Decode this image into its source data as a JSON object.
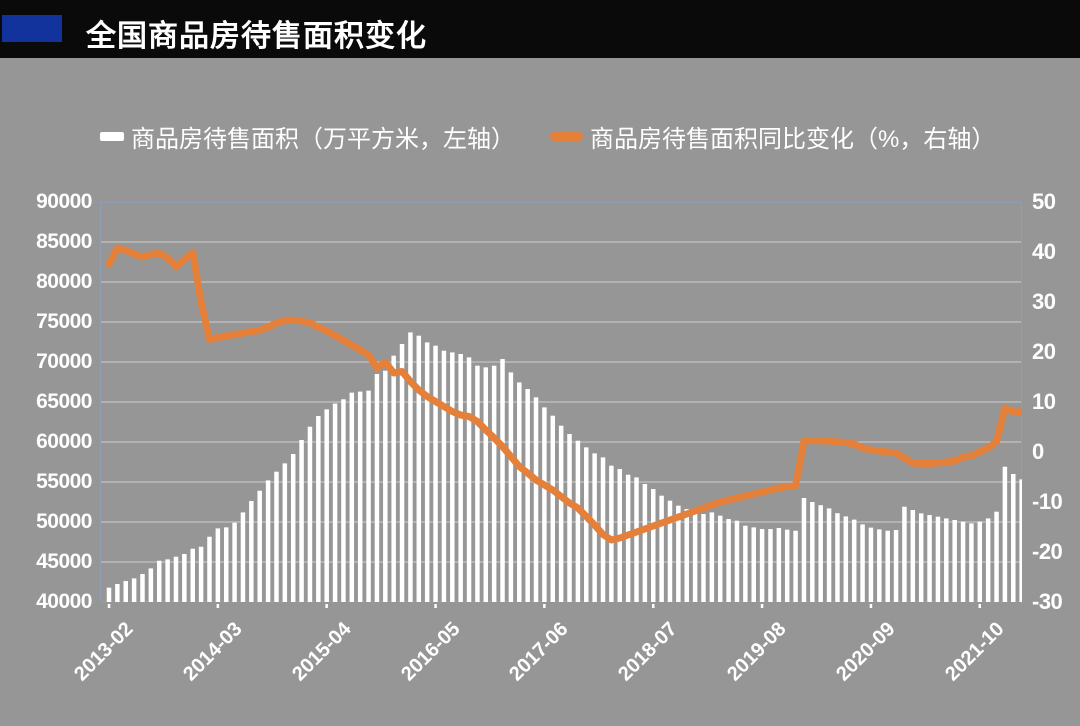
{
  "title": {
    "text": "全国商品房待售面积变化"
  },
  "legend": {
    "items": [
      {
        "label": "商品房待售面积（万平方米，左轴）",
        "marker": "bar",
        "color": "#ffffff"
      },
      {
        "label": "商品房待售面积同比变化（%，右轴）",
        "marker": "line",
        "color": "#e5803a"
      }
    ]
  },
  "colors": {
    "background": "#969696",
    "title_bar": "#0a0a0a",
    "title_accent": "#13339c",
    "bar_series": "#ffffff",
    "line_series": "#e5803a",
    "gridline": "#c4c4c4",
    "plot_border": "#8e9db8",
    "text": "#ffffff"
  },
  "chart_data": {
    "type": "combo",
    "title": "全国商品房待售面积变化",
    "grid": true,
    "legend_position": "top",
    "x_axis_labels": [
      "2013-02",
      "2014-03",
      "2015-04",
      "2016-05",
      "2017-06",
      "2018-07",
      "2019-08",
      "2020-09",
      "2021-10"
    ],
    "x_label_every": 13,
    "left_axis": {
      "min": 40000,
      "max": 90000,
      "ticks": [
        "90000",
        "85000",
        "80000",
        "75000",
        "70000",
        "65000",
        "60000",
        "55000",
        "50000",
        "45000",
        "40000"
      ]
    },
    "right_axis": {
      "min": -30,
      "max": 50,
      "ticks": [
        "50",
        "40",
        "30",
        "20",
        "10",
        "0",
        "-10",
        "-20",
        "-30"
      ]
    },
    "x": [
      "2013-02",
      "2013-03",
      "2013-04",
      "2013-05",
      "2013-06",
      "2013-07",
      "2013-08",
      "2013-09",
      "2013-10",
      "2013-11",
      "2013-12",
      "2014-01",
      "2014-02",
      "2014-03",
      "2014-04",
      "2014-05",
      "2014-06",
      "2014-07",
      "2014-08",
      "2014-09",
      "2014-10",
      "2014-11",
      "2014-12",
      "2015-01",
      "2015-02",
      "2015-03",
      "2015-04",
      "2015-05",
      "2015-06",
      "2015-07",
      "2015-08",
      "2015-09",
      "2015-10",
      "2015-11",
      "2015-12",
      "2016-01",
      "2016-02",
      "2016-03",
      "2016-04",
      "2016-05",
      "2016-06",
      "2016-07",
      "2016-08",
      "2016-09",
      "2016-10",
      "2016-11",
      "2016-12",
      "2017-01",
      "2017-02",
      "2017-03",
      "2017-04",
      "2017-05",
      "2017-06",
      "2017-07",
      "2017-08",
      "2017-09",
      "2017-10",
      "2017-11",
      "2017-12",
      "2018-01",
      "2018-02",
      "2018-03",
      "2018-04",
      "2018-05",
      "2018-06",
      "2018-07",
      "2018-08",
      "2018-09",
      "2018-10",
      "2018-11",
      "2018-12",
      "2019-01",
      "2019-02",
      "2019-03",
      "2019-04",
      "2019-05",
      "2019-06",
      "2019-07",
      "2019-08",
      "2019-09",
      "2019-10",
      "2019-11",
      "2019-12",
      "2020-01",
      "2020-02",
      "2020-03",
      "2020-04",
      "2020-05",
      "2020-06",
      "2020-07",
      "2020-08",
      "2020-09",
      "2020-10",
      "2020-11",
      "2020-12",
      "2021-01",
      "2021-02",
      "2021-03",
      "2021-04",
      "2021-05",
      "2021-06",
      "2021-07",
      "2021-08",
      "2021-09",
      "2021-10",
      "2021-11",
      "2021-12",
      "2022-01",
      "2022-02",
      "2022-03"
    ],
    "series": [
      {
        "name": "商品房待售面积（万平方米，左轴）",
        "type": "bar",
        "axis": "left",
        "color": "#ffffff",
        "values": [
          41790,
          42250,
          42620,
          42950,
          43500,
          44200,
          45160,
          45330,
          45660,
          46000,
          46660,
          46910,
          48160,
          49200,
          49330,
          49910,
          51200,
          52620,
          53910,
          55200,
          56290,
          57330,
          58500,
          60250,
          61910,
          63250,
          64080,
          64800,
          65340,
          66170,
          66300,
          66420,
          68500,
          68910,
          70790,
          72250,
          73700,
          73290,
          72450,
          72040,
          71410,
          71200,
          71000,
          70580,
          69540,
          69330,
          69540,
          70370,
          68700,
          67450,
          66620,
          65580,
          64330,
          63290,
          62040,
          61000,
          60160,
          59330,
          58580,
          58080,
          57040,
          56620,
          55910,
          55580,
          54750,
          54120,
          53290,
          52660,
          52040,
          51620,
          51410,
          51000,
          51200,
          50790,
          50370,
          50160,
          49540,
          49330,
          49120,
          49120,
          49250,
          49040,
          48910,
          53000,
          52500,
          52100,
          51700,
          51100,
          50700,
          50300,
          49700,
          49300,
          49080,
          48910,
          49000,
          51910,
          51500,
          51080,
          50870,
          50660,
          50450,
          50250,
          50040,
          49830,
          50040,
          50450,
          51290,
          56910,
          56000,
          55330
        ]
      },
      {
        "name": "商品房待售面积同比变化（%，右轴）",
        "type": "line",
        "axis": "right",
        "color": "#e5803a",
        "values": [
          37.6,
          40.8,
          40.3,
          39.6,
          39.0,
          39.5,
          39.8,
          38.8,
          37.0,
          38.5,
          39.9,
          30.0,
          22.5,
          22.9,
          23.2,
          23.5,
          23.8,
          24.1,
          24.3,
          25.0,
          25.8,
          26.3,
          26.4,
          26.2,
          25.8,
          25.0,
          24.2,
          23.3,
          22.3,
          21.4,
          20.4,
          19.4,
          16.8,
          18.0,
          15.8,
          16.1,
          14.1,
          12.4,
          11.1,
          10.1,
          9.1,
          8.1,
          7.4,
          7.1,
          6.1,
          4.4,
          2.8,
          1.1,
          -0.9,
          -2.9,
          -4.2,
          -5.6,
          -6.6,
          -7.6,
          -8.9,
          -10.2,
          -11.2,
          -12.9,
          -14.6,
          -16.5,
          -17.6,
          -17.2,
          -16.6,
          -16.0,
          -15.4,
          -14.8,
          -14.2,
          -13.6,
          -13.0,
          -12.4,
          -11.8,
          -11.2,
          -10.6,
          -10.0,
          -9.6,
          -9.2,
          -8.8,
          -8.4,
          -8.0,
          -7.6,
          -7.2,
          -6.9,
          -6.7,
          2.2,
          2.3,
          2.2,
          2.2,
          2.0,
          1.9,
          1.6,
          0.8,
          0.4,
          0.2,
          0.0,
          -0.2,
          -1.2,
          -2.2,
          -2.3,
          -2.3,
          -2.2,
          -2.0,
          -1.8,
          -1.0,
          -0.8,
          0.1,
          0.8,
          2.1,
          8.8,
          8.0,
          8.1
        ]
      }
    ]
  }
}
